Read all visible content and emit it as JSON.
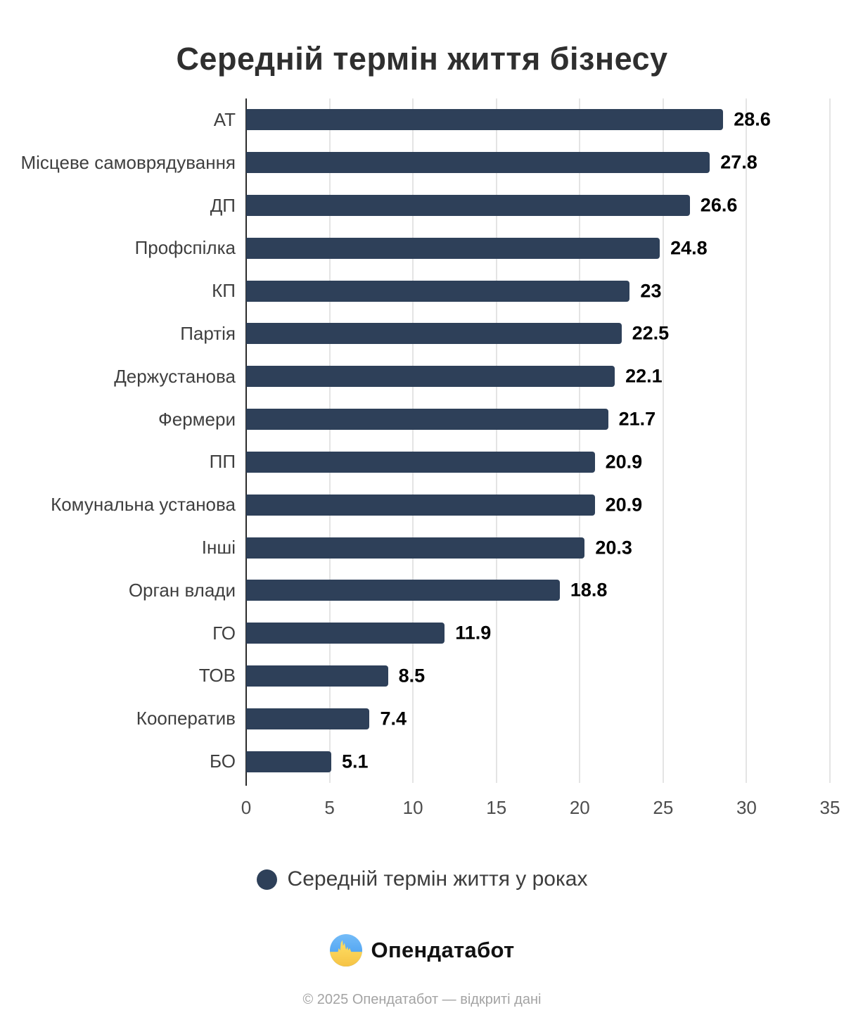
{
  "title": "Середній термін життя бізнесу",
  "chart_data": {
    "type": "bar",
    "orientation": "horizontal",
    "title": "Середній термін життя бізнесу",
    "categories": [
      "АТ",
      "Місцеве самоврядування",
      "ДП",
      "Профспілка",
      "КП",
      "Партія",
      "Держустанова",
      "Фермери",
      "ПП",
      "Комунальна установа",
      "Інші",
      "Орган влади",
      "ГО",
      "ТОВ",
      "Кооператив",
      "БО"
    ],
    "values": [
      28.6,
      27.8,
      26.6,
      24.8,
      23,
      22.5,
      22.1,
      21.7,
      20.9,
      20.9,
      20.3,
      18.8,
      11.9,
      8.5,
      7.4,
      5.1
    ],
    "series_name": "Середній термін життя у роках",
    "xlabel": "",
    "ylabel": "",
    "xlim": [
      0,
      35
    ],
    "x_ticks": [
      0,
      5,
      10,
      15,
      20,
      25,
      30,
      35
    ],
    "grid": true,
    "value_labels": true,
    "legend_position": "bottom",
    "bar_color": "#2e4059"
  },
  "legend": {
    "marker_color": "#2e4059",
    "label": "Середній термін життя у роках"
  },
  "branding": {
    "logo_text": "Опендатабот",
    "logo_icon": "opendatabot-pulse-icon",
    "logo_blue": "#4aa0f0",
    "logo_yellow": "#ffd44d"
  },
  "footer": {
    "text": "© 2025 Опендатабот — відкриті дані"
  }
}
